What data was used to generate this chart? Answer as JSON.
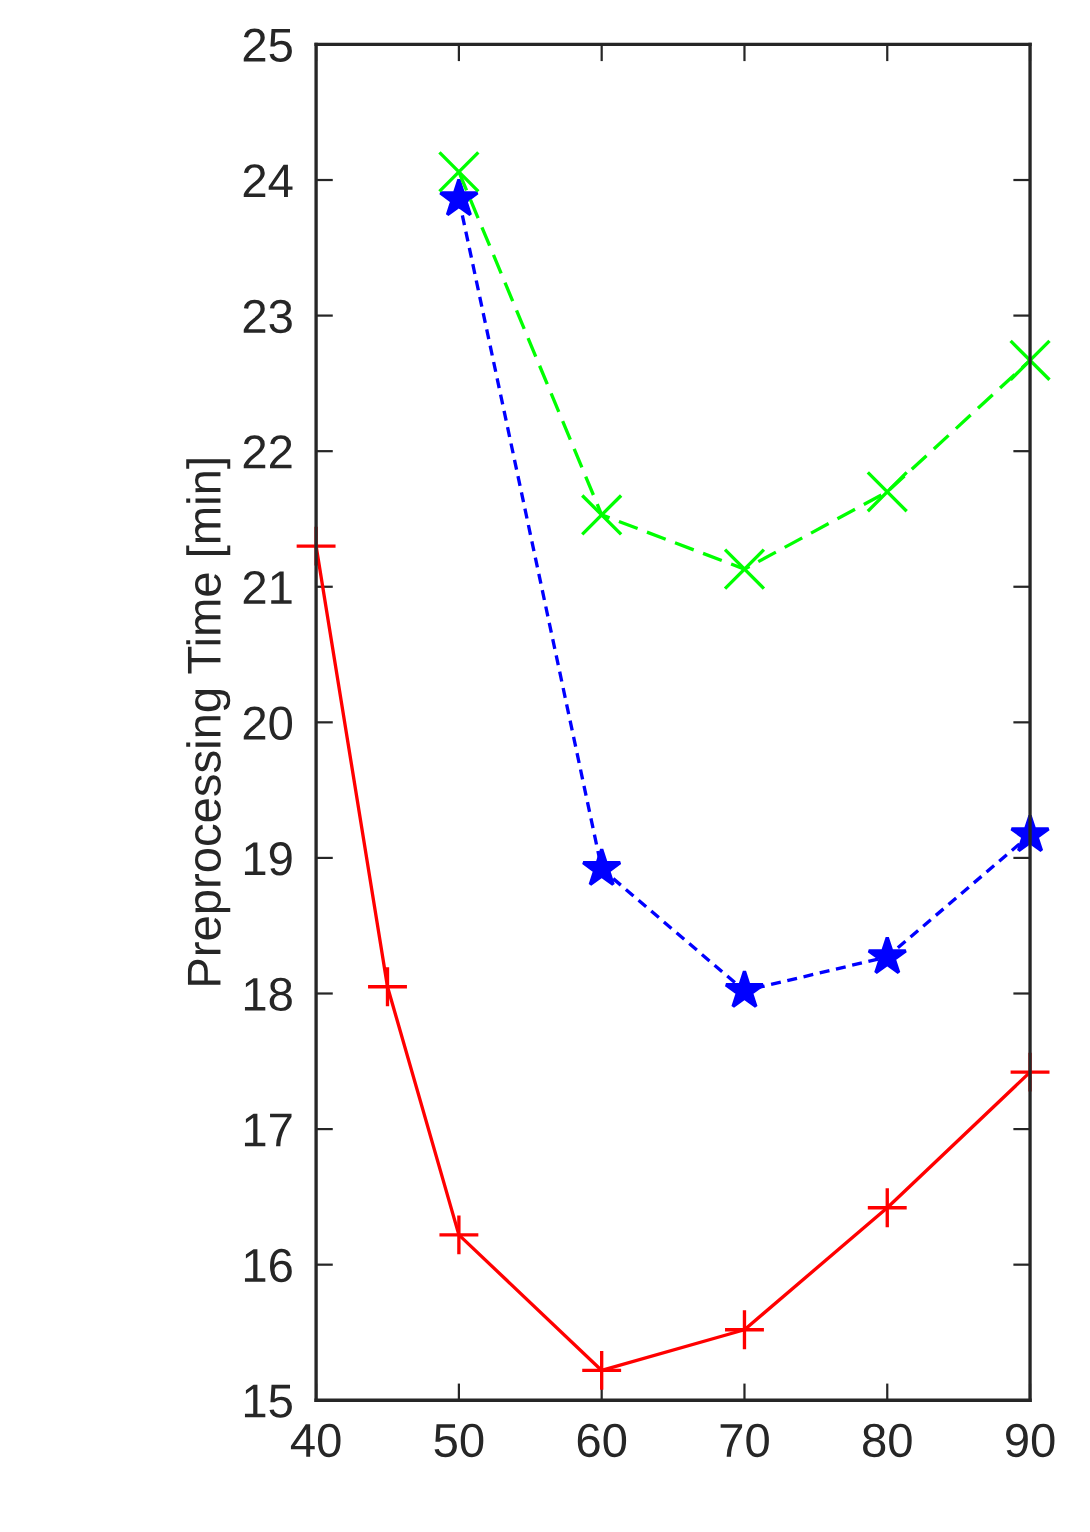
{
  "chart_data": {
    "type": "line",
    "ylabel": "Preprocessing Time [min]",
    "xlim": [
      40,
      90
    ],
    "xticks": [
      40,
      50,
      60,
      70,
      80,
      90
    ],
    "ylim": [
      15,
      25
    ],
    "yticks": [
      15,
      16,
      17,
      18,
      19,
      20,
      21,
      22,
      23,
      24,
      25
    ],
    "grid": false,
    "legend": false,
    "series": [
      {
        "color": "#ff0000",
        "x": [
          40,
          45,
          50,
          60,
          70,
          80,
          90
        ],
        "values": [
          21.3,
          18.05,
          16.22,
          15.22,
          15.52,
          16.42,
          17.42
        ],
        "marker": "plus",
        "line_style": "solid"
      },
      {
        "color": "#0000ff",
        "x": [
          50,
          60,
          70,
          80,
          90
        ],
        "values": [
          23.86,
          18.92,
          18.02,
          18.27,
          19.17
        ],
        "marker": "star",
        "line_style": "dotted"
      },
      {
        "color": "#00ff00",
        "x": [
          50,
          60,
          70,
          80,
          90
        ],
        "values": [
          24.06,
          21.53,
          21.13,
          21.7,
          22.67
        ],
        "marker": "cross",
        "line_style": "dashed"
      }
    ]
  }
}
